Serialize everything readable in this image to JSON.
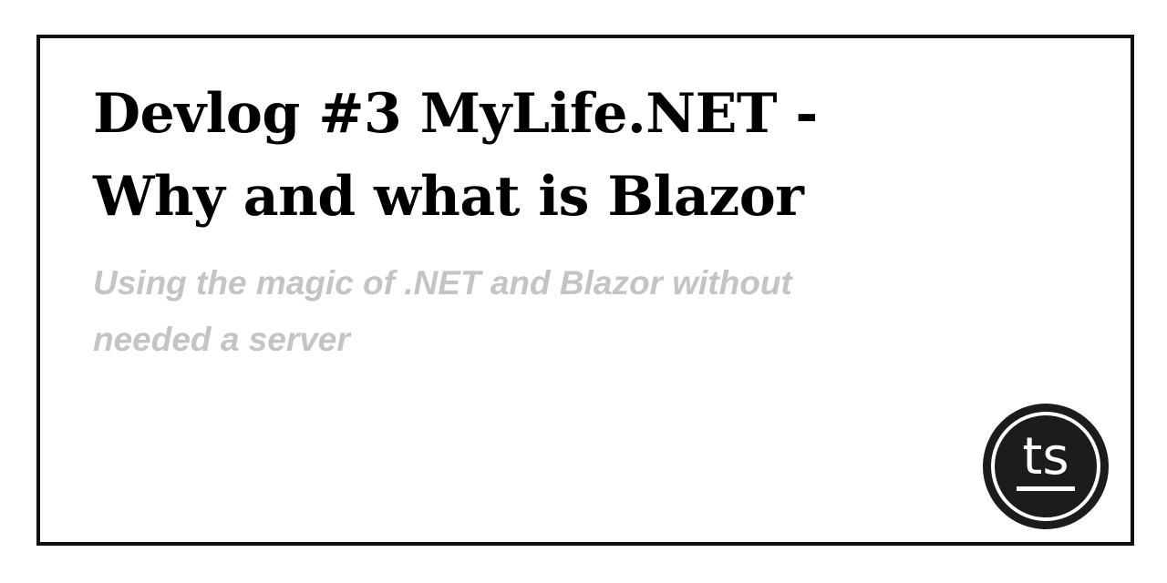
{
  "post": {
    "title_line1": "Devlog #3 MyLife.NET -",
    "title_line2": "Why and what is Blazor",
    "subtitle_line1": "Using the magic of .NET and Blazor without",
    "subtitle_line2": "needed a server"
  },
  "logo": {
    "text": "ts",
    "colors": {
      "background": "#1c1c1c",
      "foreground": "#ffffff"
    }
  }
}
